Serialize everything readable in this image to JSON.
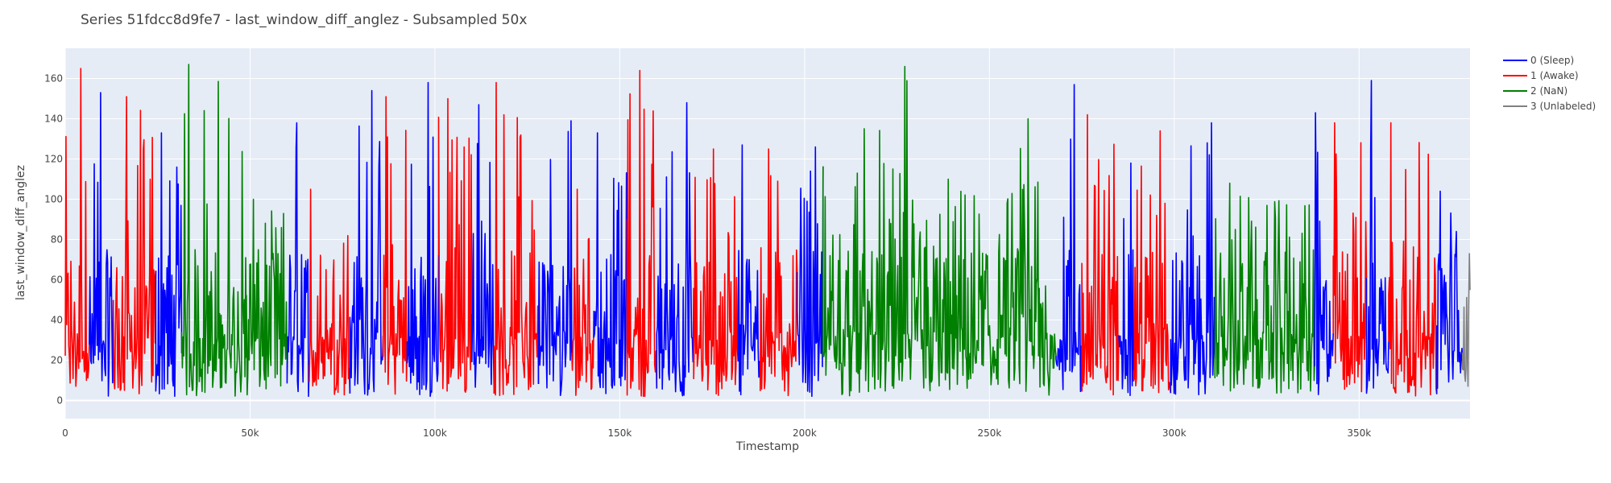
{
  "chart_data": {
    "type": "line",
    "title": "Series 51fdcc8d9fe7 - last_window_diff_anglez - Subsampled 50x",
    "xlabel": "Timestamp",
    "ylabel": "last_window_diff_anglez",
    "xlim": [
      0,
      380000
    ],
    "ylim": [
      -9,
      175
    ],
    "x_ticks": [
      0,
      50000,
      100000,
      150000,
      200000,
      250000,
      300000,
      350000
    ],
    "x_tick_labels": [
      "0",
      "50k",
      "100k",
      "150k",
      "200k",
      "250k",
      "300k",
      "350k"
    ],
    "y_ticks": [
      0,
      20,
      40,
      60,
      80,
      100,
      120,
      140,
      160
    ],
    "y_tick_labels": [
      "0",
      "20",
      "40",
      "60",
      "80",
      "100",
      "120",
      "140",
      "160"
    ],
    "grid": true,
    "legend_position": "top-right",
    "background_color": "#e5ecf6",
    "series": [
      {
        "name": "0 (Sleep)",
        "color": "#0000ff"
      },
      {
        "name": "1 (Awake)",
        "color": "#ff0000"
      },
      {
        "name": "2 (NaN)",
        "color": "#008000"
      },
      {
        "name": "3 (Unlabeled)",
        "color": "#808080"
      }
    ],
    "segments": [
      {
        "label": 1,
        "x": [
          0,
          6500
        ],
        "peak": 165
      },
      {
        "label": 0,
        "x": [
          6500,
          13000
        ],
        "peak": 153
      },
      {
        "label": 1,
        "x": [
          13000,
          24500
        ],
        "peak": 151
      },
      {
        "label": 0,
        "x": [
          24500,
          31500
        ],
        "peak": 133
      },
      {
        "label": 2,
        "x": [
          31500,
          49000
        ],
        "peak": 167
      },
      {
        "label": 2,
        "x": [
          49000,
          60000
        ],
        "peak": 100
      },
      {
        "label": 0,
        "x": [
          60000,
          66000
        ],
        "peak": 138
      },
      {
        "label": 1,
        "x": [
          66000,
          77000
        ],
        "peak": 105
      },
      {
        "label": 0,
        "x": [
          77000,
          86000
        ],
        "peak": 154
      },
      {
        "label": 1,
        "x": [
          86000,
          92500
        ],
        "peak": 151
      },
      {
        "label": 0,
        "x": [
          92500,
          101000
        ],
        "peak": 158
      },
      {
        "label": 1,
        "x": [
          101000,
          110000
        ],
        "peak": 150
      },
      {
        "label": 0,
        "x": [
          110000,
          116000
        ],
        "peak": 147
      },
      {
        "label": 1,
        "x": [
          116000,
          128000
        ],
        "peak": 158
      },
      {
        "label": 0,
        "x": [
          128000,
          137000
        ],
        "peak": 139
      },
      {
        "label": 1,
        "x": [
          137000,
          143000
        ],
        "peak": 105
      },
      {
        "label": 0,
        "x": [
          143000,
          152000
        ],
        "peak": 133
      },
      {
        "label": 1,
        "x": [
          152000,
          160000
        ],
        "peak": 164
      },
      {
        "label": 0,
        "x": [
          160000,
          170000
        ],
        "peak": 148
      },
      {
        "label": 1,
        "x": [
          170000,
          182000
        ],
        "peak": 125
      },
      {
        "label": 0,
        "x": [
          182000,
          188000
        ],
        "peak": 127
      },
      {
        "label": 1,
        "x": [
          188000,
          198000
        ],
        "peak": 125
      },
      {
        "label": 0,
        "x": [
          198000,
          205000
        ],
        "peak": 126
      },
      {
        "label": 2,
        "x": [
          205000,
          215000
        ],
        "peak": 113
      },
      {
        "label": 2,
        "x": [
          215000,
          229000
        ],
        "peak": 166
      },
      {
        "label": 2,
        "x": [
          229000,
          258000
        ],
        "peak": 110
      },
      {
        "label": 2,
        "x": [
          258000,
          268000
        ],
        "peak": 140
      },
      {
        "label": 0,
        "x": [
          268000,
          275000
        ],
        "peak": 157
      },
      {
        "label": 1,
        "x": [
          275000,
          285000
        ],
        "peak": 142
      },
      {
        "label": 0,
        "x": [
          285000,
          289000
        ],
        "peak": 118
      },
      {
        "label": 1,
        "x": [
          289000,
          299000
        ],
        "peak": 134
      },
      {
        "label": 0,
        "x": [
          299000,
          311000
        ],
        "peak": 138
      },
      {
        "label": 2,
        "x": [
          311000,
          338000
        ],
        "peak": 108
      },
      {
        "label": 0,
        "x": [
          338000,
          343000
        ],
        "peak": 143
      },
      {
        "label": 1,
        "x": [
          343000,
          352000
        ],
        "peak": 138
      },
      {
        "label": 0,
        "x": [
          352000,
          358000
        ],
        "peak": 159
      },
      {
        "label": 1,
        "x": [
          358000,
          371000
        ],
        "peak": 138
      },
      {
        "label": 0,
        "x": [
          371000,
          378000
        ],
        "peak": 104
      },
      {
        "label": 3,
        "x": [
          378000,
          380000
        ],
        "peak": 73
      }
    ]
  }
}
